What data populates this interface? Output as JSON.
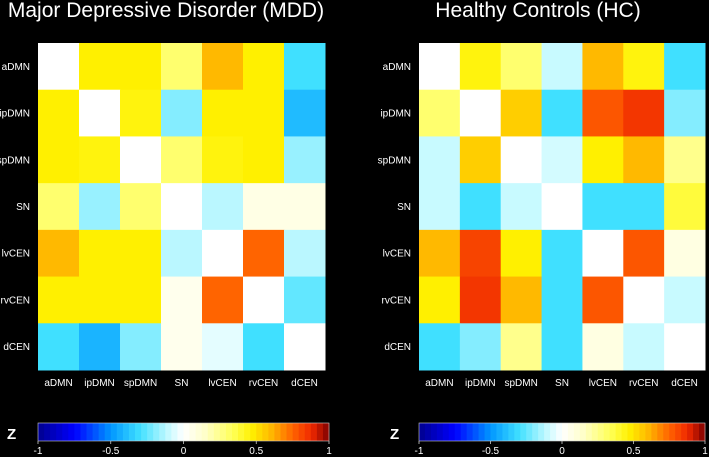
{
  "colors": {
    "background": "#000000",
    "text": "#ffffff"
  },
  "chart_data": [
    {
      "type": "heatmap",
      "title": "Major Depressive Disorder (MDD)",
      "rows": [
        "aDMN",
        "ipDMN",
        "spDMN",
        "SN",
        "lvCEN",
        "rvCEN",
        "dCEN"
      ],
      "columns": [
        "aDMN",
        "ipDMN",
        "spDMN",
        "SN",
        "lvCEN",
        "rvCEN",
        "dCEN"
      ],
      "values": [
        [
          0.0,
          0.47,
          0.47,
          0.3,
          0.6,
          0.47,
          -0.3
        ],
        [
          0.47,
          0.0,
          0.45,
          -0.2,
          0.47,
          0.47,
          -0.4
        ],
        [
          0.47,
          0.45,
          0.0,
          0.3,
          0.45,
          0.47,
          -0.17
        ],
        [
          0.3,
          -0.17,
          0.3,
          0.0,
          -0.12,
          0.07,
          0.07
        ],
        [
          0.6,
          0.47,
          0.47,
          -0.12,
          0.0,
          0.75,
          -0.12
        ],
        [
          0.47,
          0.47,
          0.47,
          0.05,
          0.75,
          0.0,
          -0.25
        ],
        [
          -0.3,
          -0.42,
          -0.2,
          0.05,
          -0.05,
          -0.3,
          0.0
        ]
      ],
      "clim": [
        -1,
        1
      ],
      "colorbar": {
        "label": "Z",
        "ticks": [
          "-1",
          "-0.5",
          "0",
          "0.5",
          "1"
        ]
      }
    },
    {
      "type": "heatmap",
      "title": "Healthy Controls (HC)",
      "rows": [
        "aDMN",
        "ipDMN",
        "spDMN",
        "SN",
        "lvCEN",
        "rvCEN",
        "dCEN"
      ],
      "columns": [
        "aDMN",
        "ipDMN",
        "spDMN",
        "SN",
        "lvCEN",
        "rvCEN",
        "dCEN"
      ],
      "values": [
        [
          0.0,
          0.45,
          0.3,
          -0.1,
          0.6,
          0.45,
          -0.3
        ],
        [
          0.3,
          0.0,
          0.55,
          -0.3,
          0.78,
          0.85,
          -0.2
        ],
        [
          -0.1,
          0.55,
          0.0,
          -0.08,
          0.47,
          0.6,
          0.25
        ],
        [
          -0.1,
          -0.3,
          -0.1,
          0.0,
          -0.3,
          -0.3,
          0.38
        ],
        [
          0.6,
          0.82,
          0.47,
          -0.3,
          0.0,
          0.78,
          0.08
        ],
        [
          0.47,
          0.85,
          0.6,
          -0.3,
          0.78,
          0.0,
          -0.1
        ],
        [
          -0.3,
          -0.2,
          0.25,
          -0.3,
          0.08,
          -0.1,
          0.0
        ]
      ],
      "clim": [
        -1,
        1
      ],
      "colorbar": {
        "label": "Z",
        "ticks": [
          "-1",
          "-0.5",
          "0",
          "0.5",
          "1"
        ]
      }
    }
  ]
}
